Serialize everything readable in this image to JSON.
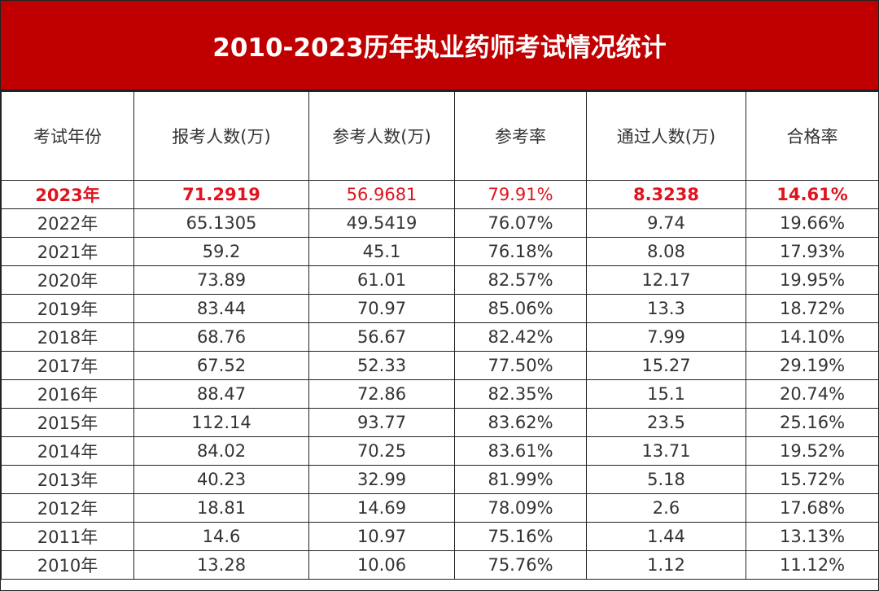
{
  "title": "2010-2023历年执业药师考试情况统计",
  "headers": [
    "考试年份",
    "报考人数(万)",
    "参考人数(万)",
    "参考率",
    "通过人数(万)",
    "合格率"
  ],
  "highlight_color": "#e0141e",
  "header_bg": "#c00000",
  "rows": [
    [
      "2023年",
      "71.2919",
      "56.9681",
      "79.91%",
      "8.3238",
      "14.61%"
    ],
    [
      "2022年",
      "65.1305",
      "49.5419",
      "76.07%",
      "9.74",
      "19.66%"
    ],
    [
      "2021年",
      "59.2",
      "45.1",
      "76.18%",
      "8.08",
      "17.93%"
    ],
    [
      "2020年",
      "73.89",
      "61.01",
      "82.57%",
      "12.17",
      "19.95%"
    ],
    [
      "2019年",
      "83.44",
      "70.97",
      "85.06%",
      "13.3",
      "18.72%"
    ],
    [
      "2018年",
      "68.76",
      "56.67",
      "82.42%",
      "7.99",
      "14.10%"
    ],
    [
      "2017年",
      "67.52",
      "52.33",
      "77.50%",
      "15.27",
      "29.19%"
    ],
    [
      "2016年",
      "88.47",
      "72.86",
      "82.35%",
      "15.1",
      "20.74%"
    ],
    [
      "2015年",
      "112.14",
      "93.77",
      "83.62%",
      "23.5",
      "25.16%"
    ],
    [
      "2014年",
      "84.02",
      "70.25",
      "83.61%",
      "13.71",
      "19.52%"
    ],
    [
      "2013年",
      "40.23",
      "32.99",
      "81.99%",
      "5.18",
      "15.72%"
    ],
    [
      "2012年",
      "18.81",
      "14.69",
      "78.09%",
      "2.6",
      "17.68%"
    ],
    [
      "2011年",
      "14.6",
      "10.97",
      "75.16%",
      "1.44",
      "13.13%"
    ],
    [
      "2010年",
      "13.28",
      "10.06",
      "75.76%",
      "1.12",
      "11.12%"
    ]
  ]
}
